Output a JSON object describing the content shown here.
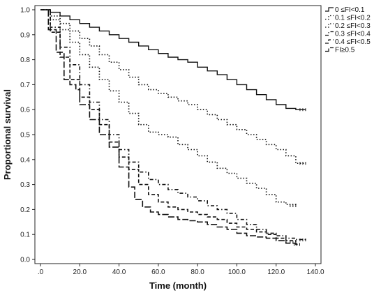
{
  "chart_data": {
    "type": "line",
    "title": "",
    "xlabel": "Time (month)",
    "ylabel": "Proportional survival",
    "xlim": [
      0,
      140
    ],
    "ylim": [
      0,
      1
    ],
    "x_ticks": [
      ".0",
      "20.0",
      "40.0",
      "60.0",
      "80.0",
      "100.0",
      "120.0",
      "140.0"
    ],
    "y_ticks": [
      "0.0",
      "0.1",
      "0.2",
      "0.3",
      "0.4",
      "0.5",
      "0.6",
      "0.7",
      "0.8",
      "0.9",
      "1.0"
    ],
    "grid": false,
    "legend_position": "top-right",
    "series": [
      {
        "name": "0 ≤FI<0.1",
        "style": "solid",
        "points": [
          [
            0,
            1.0
          ],
          [
            5,
            0.99
          ],
          [
            10,
            0.975
          ],
          [
            15,
            0.96
          ],
          [
            20,
            0.945
          ],
          [
            25,
            0.93
          ],
          [
            30,
            0.915
          ],
          [
            35,
            0.9
          ],
          [
            40,
            0.885
          ],
          [
            45,
            0.87
          ],
          [
            50,
            0.855
          ],
          [
            55,
            0.84
          ],
          [
            60,
            0.825
          ],
          [
            65,
            0.81
          ],
          [
            70,
            0.8
          ],
          [
            75,
            0.79
          ],
          [
            80,
            0.77
          ],
          [
            85,
            0.755
          ],
          [
            90,
            0.74
          ],
          [
            95,
            0.72
          ],
          [
            100,
            0.7
          ],
          [
            105,
            0.68
          ],
          [
            110,
            0.66
          ],
          [
            115,
            0.64
          ],
          [
            120,
            0.62
          ],
          [
            125,
            0.605
          ],
          [
            130,
            0.6
          ],
          [
            135,
            0.6
          ]
        ]
      },
      {
        "name": "0.1 ≤FI<0.2",
        "style": "dotted",
        "points": [
          [
            0,
            1.0
          ],
          [
            5,
            0.975
          ],
          [
            10,
            0.945
          ],
          [
            15,
            0.915
          ],
          [
            20,
            0.885
          ],
          [
            25,
            0.855
          ],
          [
            30,
            0.82
          ],
          [
            35,
            0.79
          ],
          [
            40,
            0.76
          ],
          [
            45,
            0.73
          ],
          [
            50,
            0.7
          ],
          [
            55,
            0.68
          ],
          [
            60,
            0.665
          ],
          [
            65,
            0.65
          ],
          [
            70,
            0.635
          ],
          [
            75,
            0.62
          ],
          [
            80,
            0.6
          ],
          [
            85,
            0.58
          ],
          [
            90,
            0.56
          ],
          [
            95,
            0.54
          ],
          [
            100,
            0.52
          ],
          [
            105,
            0.5
          ],
          [
            110,
            0.48
          ],
          [
            115,
            0.46
          ],
          [
            120,
            0.44
          ],
          [
            125,
            0.415
          ],
          [
            130,
            0.385
          ],
          [
            135,
            0.385
          ]
        ]
      },
      {
        "name": "0.2 ≤FI<0.3",
        "style": "dotted",
        "points": [
          [
            0,
            1.0
          ],
          [
            5,
            0.96
          ],
          [
            10,
            0.92
          ],
          [
            15,
            0.87
          ],
          [
            20,
            0.82
          ],
          [
            25,
            0.77
          ],
          [
            30,
            0.72
          ],
          [
            35,
            0.675
          ],
          [
            40,
            0.63
          ],
          [
            45,
            0.585
          ],
          [
            50,
            0.54
          ],
          [
            55,
            0.51
          ],
          [
            60,
            0.5
          ],
          [
            65,
            0.49
          ],
          [
            70,
            0.46
          ],
          [
            75,
            0.44
          ],
          [
            80,
            0.415
          ],
          [
            85,
            0.39
          ],
          [
            90,
            0.365
          ],
          [
            95,
            0.345
          ],
          [
            100,
            0.325
          ],
          [
            105,
            0.305
          ],
          [
            110,
            0.285
          ],
          [
            115,
            0.26
          ],
          [
            120,
            0.23
          ],
          [
            125,
            0.22
          ],
          [
            130,
            0.215
          ]
        ]
      },
      {
        "name": "0.3 ≤FI<0.4",
        "style": "dashdot",
        "points": [
          [
            0,
            1.0
          ],
          [
            5,
            0.93
          ],
          [
            10,
            0.85
          ],
          [
            15,
            0.78
          ],
          [
            20,
            0.7
          ],
          [
            25,
            0.63
          ],
          [
            30,
            0.56
          ],
          [
            35,
            0.5
          ],
          [
            40,
            0.44
          ],
          [
            45,
            0.39
          ],
          [
            50,
            0.35
          ],
          [
            55,
            0.32
          ],
          [
            60,
            0.3
          ],
          [
            65,
            0.28
          ],
          [
            70,
            0.265
          ],
          [
            75,
            0.25
          ],
          [
            80,
            0.235
          ],
          [
            85,
            0.215
          ],
          [
            90,
            0.2
          ],
          [
            95,
            0.185
          ],
          [
            100,
            0.16
          ],
          [
            105,
            0.14
          ],
          [
            110,
            0.12
          ],
          [
            115,
            0.105
          ],
          [
            120,
            0.095
          ],
          [
            125,
            0.085
          ],
          [
            130,
            0.08
          ],
          [
            135,
            0.078
          ]
        ]
      },
      {
        "name": "0.4 ≤FI<0.5",
        "style": "dashed",
        "points": [
          [
            0,
            1.0
          ],
          [
            5,
            0.91
          ],
          [
            10,
            0.81
          ],
          [
            15,
            0.72
          ],
          [
            20,
            0.65
          ],
          [
            25,
            0.6
          ],
          [
            30,
            0.54
          ],
          [
            35,
            0.47
          ],
          [
            40,
            0.41
          ],
          [
            45,
            0.36
          ],
          [
            50,
            0.3
          ],
          [
            55,
            0.26
          ],
          [
            60,
            0.23
          ],
          [
            65,
            0.21
          ],
          [
            70,
            0.2
          ],
          [
            75,
            0.19
          ],
          [
            80,
            0.18
          ],
          [
            85,
            0.17
          ],
          [
            90,
            0.16
          ],
          [
            95,
            0.145
          ],
          [
            100,
            0.13
          ],
          [
            105,
            0.12
          ],
          [
            110,
            0.11
          ],
          [
            115,
            0.1
          ],
          [
            120,
            0.085
          ],
          [
            125,
            0.075
          ],
          [
            130,
            0.07
          ]
        ]
      },
      {
        "name": "FI≥0.5",
        "style": "longdash",
        "points": [
          [
            0,
            1.0
          ],
          [
            4,
            0.92
          ],
          [
            8,
            0.83
          ],
          [
            12,
            0.72
          ],
          [
            15,
            0.7
          ],
          [
            18,
            0.68
          ],
          [
            20,
            0.62
          ],
          [
            25,
            0.56
          ],
          [
            30,
            0.5
          ],
          [
            35,
            0.45
          ],
          [
            40,
            0.37
          ],
          [
            45,
            0.29
          ],
          [
            48,
            0.24
          ],
          [
            52,
            0.21
          ],
          [
            56,
            0.19
          ],
          [
            60,
            0.18
          ],
          [
            65,
            0.17
          ],
          [
            70,
            0.16
          ],
          [
            75,
            0.155
          ],
          [
            80,
            0.15
          ],
          [
            85,
            0.14
          ],
          [
            90,
            0.13
          ],
          [
            95,
            0.12
          ],
          [
            100,
            0.105
          ],
          [
            105,
            0.095
          ],
          [
            110,
            0.09
          ],
          [
            115,
            0.085
          ],
          [
            120,
            0.075
          ],
          [
            125,
            0.065
          ],
          [
            130,
            0.06
          ],
          [
            132,
            0.06
          ]
        ]
      }
    ]
  }
}
